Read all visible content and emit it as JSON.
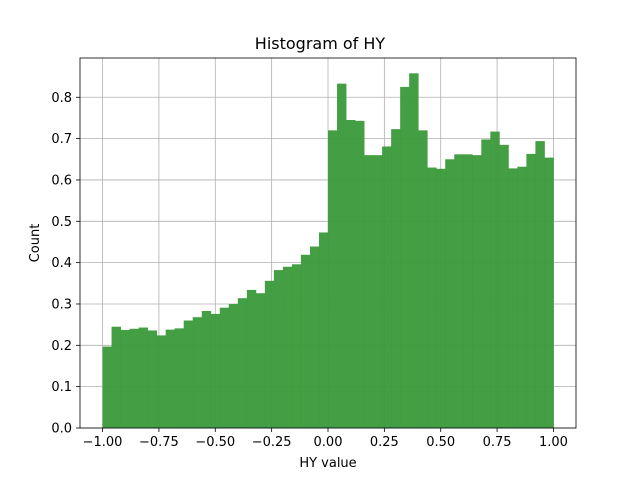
{
  "chart_data": {
    "type": "bar",
    "title": "Histogram of HY",
    "xlabel": "HY value",
    "ylabel": "Count",
    "xlim": [
      -1.1,
      1.1
    ],
    "ylim": [
      0,
      0.895
    ],
    "grid": true,
    "bar_color": "#3a9a3a",
    "bin_edges_start": -1.0,
    "bin_width": 0.04,
    "values": [
      0.197,
      0.245,
      0.237,
      0.24,
      0.243,
      0.236,
      0.224,
      0.238,
      0.241,
      0.26,
      0.268,
      0.283,
      0.276,
      0.291,
      0.3,
      0.314,
      0.334,
      0.326,
      0.356,
      0.382,
      0.39,
      0.396,
      0.419,
      0.439,
      0.473,
      0.72,
      0.833,
      0.745,
      0.743,
      0.66,
      0.66,
      0.681,
      0.723,
      0.825,
      0.858,
      0.72,
      0.63,
      0.627,
      0.65,
      0.662,
      0.662,
      0.66,
      0.698,
      0.717,
      0.685,
      0.628,
      0.632,
      0.663,
      0.694,
      0.654
    ],
    "x_ticks": [
      -1.0,
      -0.75,
      -0.5,
      -0.25,
      0.0,
      0.25,
      0.5,
      0.75,
      1.0
    ],
    "x_tick_labels": [
      "−1.00",
      "−0.75",
      "−0.50",
      "−0.25",
      "0.00",
      "0.25",
      "0.50",
      "0.75",
      "1.00"
    ],
    "y_ticks": [
      0.0,
      0.1,
      0.2,
      0.3,
      0.4,
      0.5,
      0.6,
      0.7,
      0.8
    ],
    "y_tick_labels": [
      "0.0",
      "0.1",
      "0.2",
      "0.3",
      "0.4",
      "0.5",
      "0.6",
      "0.7",
      "0.8"
    ]
  }
}
